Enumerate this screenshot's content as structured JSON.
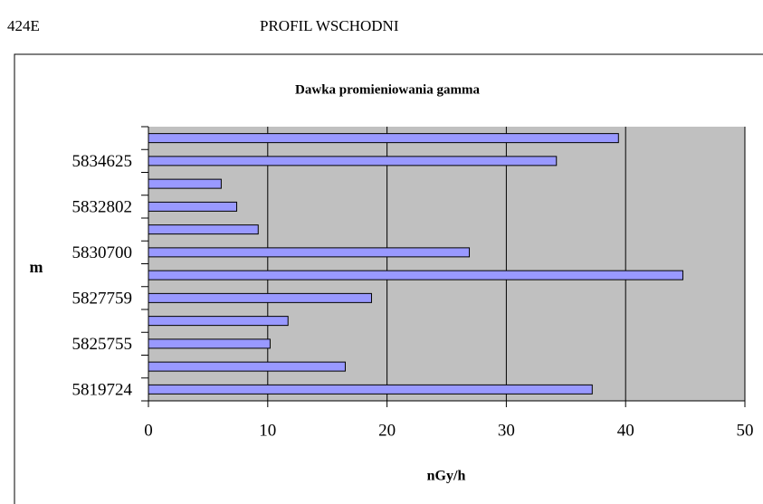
{
  "header": {
    "left": "424E",
    "title": "PROFIL WSCHODNI"
  },
  "chart_data": {
    "type": "hbar",
    "title": "Dawka promieniowania gamma",
    "ylabel": "m",
    "xlabel": "nGy/h",
    "categories": [
      "5819724",
      null,
      "5825755",
      null,
      "5827759",
      null,
      "5830700",
      null,
      "5832802",
      null,
      "5834625",
      null
    ],
    "values": [
      37.2,
      16.5,
      10.2,
      11.7,
      18.7,
      44.8,
      26.9,
      9.2,
      7.4,
      6.1,
      34.2,
      39.4
    ],
    "color": "#9999ff",
    "xlim": [
      0,
      50
    ],
    "xticks": [
      0,
      10,
      20,
      30,
      40,
      50
    ],
    "grid": true
  }
}
